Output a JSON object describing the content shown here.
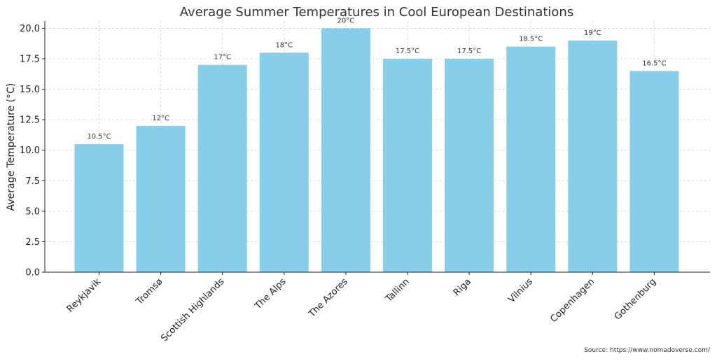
{
  "chart_data": {
    "type": "bar",
    "title": "Average Summer Temperatures in Cool European Destinations",
    "xlabel": "",
    "ylabel": "Average Temperature (°C)",
    "categories": [
      "Reykjavik",
      "Tromsø",
      "Scottish Highlands",
      "The Alps",
      "The Azores",
      "Tallinn",
      "Riga",
      "Vilnius",
      "Copenhagen",
      "Gothenburg"
    ],
    "values": [
      10.5,
      12,
      17,
      18,
      20,
      17.5,
      17.5,
      18.5,
      19,
      16.5
    ],
    "value_labels": [
      "10.5°C",
      "12°C",
      "17°C",
      "18°C",
      "20°C",
      "17.5°C",
      "17.5°C",
      "18.5°C",
      "19°C",
      "16.5°C"
    ],
    "ylim": [
      0,
      20.6
    ],
    "yticks": [
      0,
      2.5,
      5,
      7.5,
      10,
      12.5,
      15,
      17.5,
      20
    ],
    "ytick_labels": [
      "0.0",
      "2.5",
      "5.0",
      "7.5",
      "10.0",
      "12.5",
      "15.0",
      "17.5",
      "20.0"
    ],
    "grid": true,
    "bar_color": "#87ceeb"
  },
  "source": "Source: https://www.nomadoverse.com/"
}
